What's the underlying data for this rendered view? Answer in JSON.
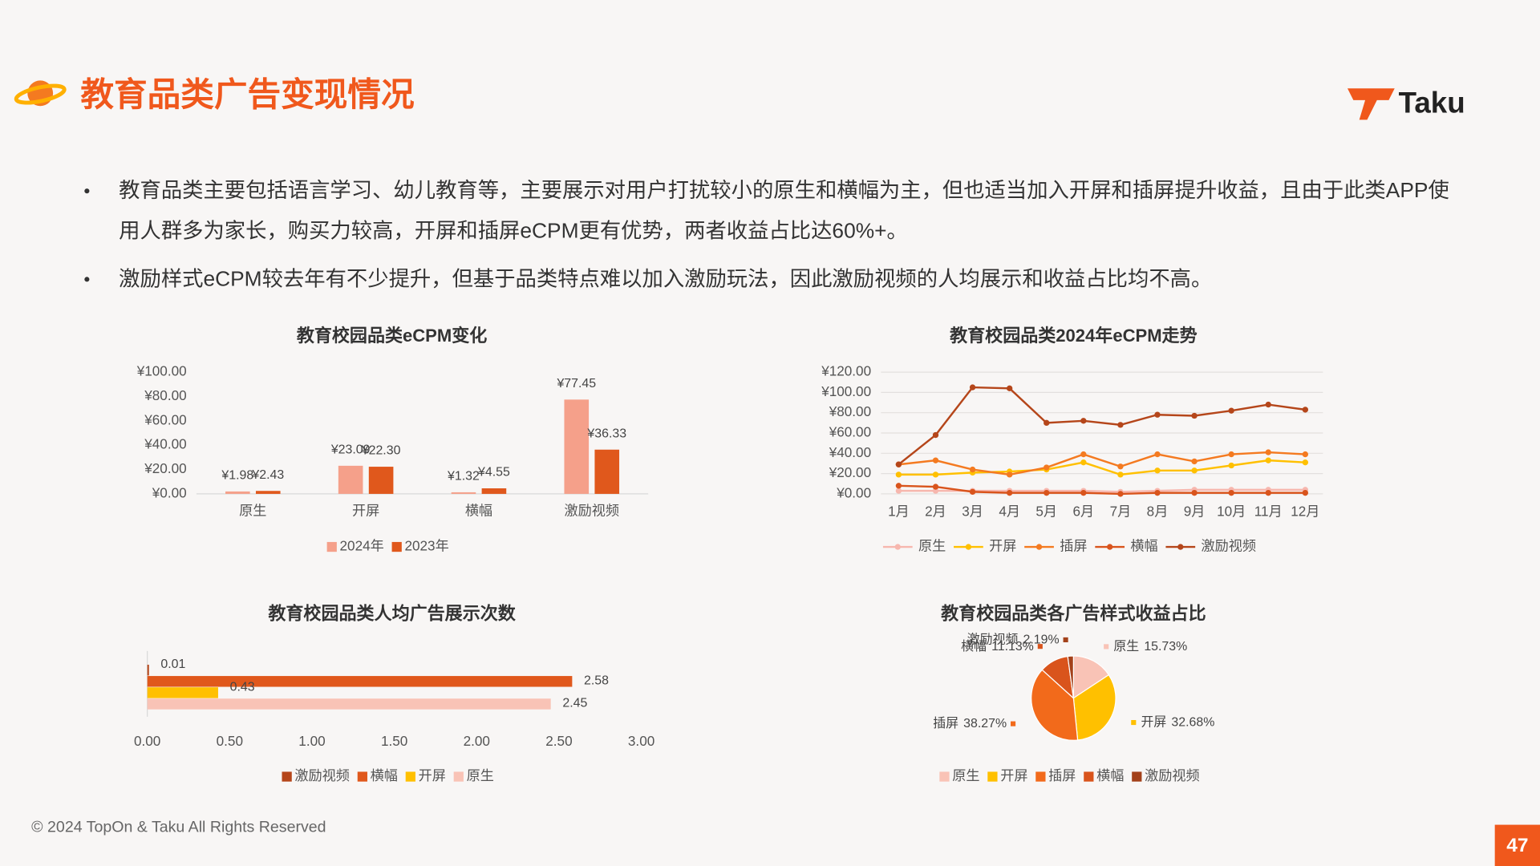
{
  "header": {
    "title": "教育品类广告变现情况",
    "logo": "Taku"
  },
  "bullets": [
    "教育品类主要包括语言学习、幼儿教育等，主要展示对用户打扰较小的原生和横幅为主，但也适当加入开屏和插屏提升收益，且由于此类APP使用人群多为家长，购买力较高，开屏和插屏eCPM更有优势，两者收益占比达60%+。",
    "激励样式eCPM较去年有不少提升，但基于品类特点难以加入激励玩法，因此激励视频的人均展示和收益占比均不高。"
  ],
  "chart_data": [
    {
      "type": "bar",
      "title": "教育校园品类eCPM变化",
      "categories": [
        "原生",
        "开屏",
        "横幅",
        "激励视频"
      ],
      "series": [
        {
          "name": "2024年",
          "color": "#f5a08a",
          "values": [
            1.98,
            23.09,
            1.32,
            77.45
          ],
          "value_labels": [
            "¥1.98",
            "¥23.09",
            "¥1.32",
            "¥77.45"
          ]
        },
        {
          "name": "2023年",
          "color": "#e0581c",
          "values": [
            2.43,
            22.3,
            4.55,
            36.33
          ],
          "value_labels": [
            "¥2.43",
            "¥22.30",
            "¥4.55",
            "¥36.33"
          ]
        }
      ],
      "ylim": [
        0,
        100
      ],
      "yticks": [
        {
          "value": 0,
          "label": "¥0.00"
        },
        {
          "value": 20,
          "label": "¥20.00"
        },
        {
          "value": 40,
          "label": "¥40.00"
        },
        {
          "value": 60,
          "label": "¥60.00"
        },
        {
          "value": 80,
          "label": "¥80.00"
        },
        {
          "value": 100,
          "label": "¥100.00"
        }
      ],
      "legend": "bottom"
    },
    {
      "type": "line",
      "title": "教育校园品类2024年eCPM走势",
      "categories": [
        "1月",
        "2月",
        "3月",
        "4月",
        "5月",
        "6月",
        "7月",
        "8月",
        "9月",
        "10月",
        "11月",
        "12月"
      ],
      "series": [
        {
          "name": "原生",
          "color": "#f7b7ae",
          "values": [
            3,
            3,
            3,
            3,
            3,
            3,
            2,
            3,
            4,
            4,
            4,
            4
          ]
        },
        {
          "name": "开屏",
          "color": "#ffc000",
          "values": [
            19,
            19,
            21,
            22,
            24,
            31,
            19,
            23,
            23,
            28,
            33,
            31
          ]
        },
        {
          "name": "插屏",
          "color": "#f47a20",
          "values": [
            29,
            33,
            24,
            19,
            26,
            39,
            27,
            39,
            32,
            39,
            41,
            39
          ]
        },
        {
          "name": "横幅",
          "color": "#d9541c",
          "values": [
            8,
            7,
            2,
            1,
            1,
            1,
            0,
            1,
            1,
            1,
            1,
            1
          ]
        },
        {
          "name": "激励视频",
          "color": "#b5461a",
          "values": [
            29,
            58,
            105,
            104,
            70,
            72,
            68,
            78,
            77,
            82,
            88,
            83
          ]
        }
      ],
      "ylim": [
        0,
        120
      ],
      "yticks": [
        {
          "value": 0,
          "label": "¥0.00"
        },
        {
          "value": 20,
          "label": "¥20.00"
        },
        {
          "value": 40,
          "label": "¥40.00"
        },
        {
          "value": 60,
          "label": "¥60.00"
        },
        {
          "value": 80,
          "label": "¥80.00"
        },
        {
          "value": 100,
          "label": "¥100.00"
        },
        {
          "value": 120,
          "label": "¥120.00"
        }
      ],
      "grid": true,
      "legend": "bottom"
    },
    {
      "type": "barh",
      "title": "教育校园品类人均广告展示次数",
      "categories": [
        "激励视频",
        "横幅",
        "开屏",
        "原生"
      ],
      "values": [
        0.01,
        2.58,
        0.43,
        2.45
      ],
      "colors": [
        "#b5461a",
        "#e0581c",
        "#ffc000",
        "#f9c3b6"
      ],
      "xlim": [
        0,
        3
      ],
      "xticks": [
        {
          "value": 0,
          "label": "0.00"
        },
        {
          "value": 0.5,
          "label": "0.50"
        },
        {
          "value": 1,
          "label": "1.00"
        },
        {
          "value": 1.5,
          "label": "1.50"
        },
        {
          "value": 2,
          "label": "2.00"
        },
        {
          "value": 2.5,
          "label": "2.50"
        },
        {
          "value": 3,
          "label": "3.00"
        }
      ],
      "legend": "bottom"
    },
    {
      "type": "pie",
      "title": "教育校园品类各广告样式收益占比",
      "categories": [
        "原生",
        "开屏",
        "插屏",
        "横幅",
        "激励视频"
      ],
      "values": [
        15.73,
        32.68,
        38.27,
        11.13,
        2.19
      ],
      "value_labels": [
        "15.73%",
        "32.68%",
        "38.27%",
        "11.13%",
        "2.19%"
      ],
      "colors": [
        "#f9c3b6",
        "#ffc000",
        "#f26a1b",
        "#d9541c",
        "#a3411a"
      ],
      "legend": "bottom"
    }
  ],
  "footer": "© 2024 TopOn & Taku All Rights Reserved",
  "page_number": "47"
}
